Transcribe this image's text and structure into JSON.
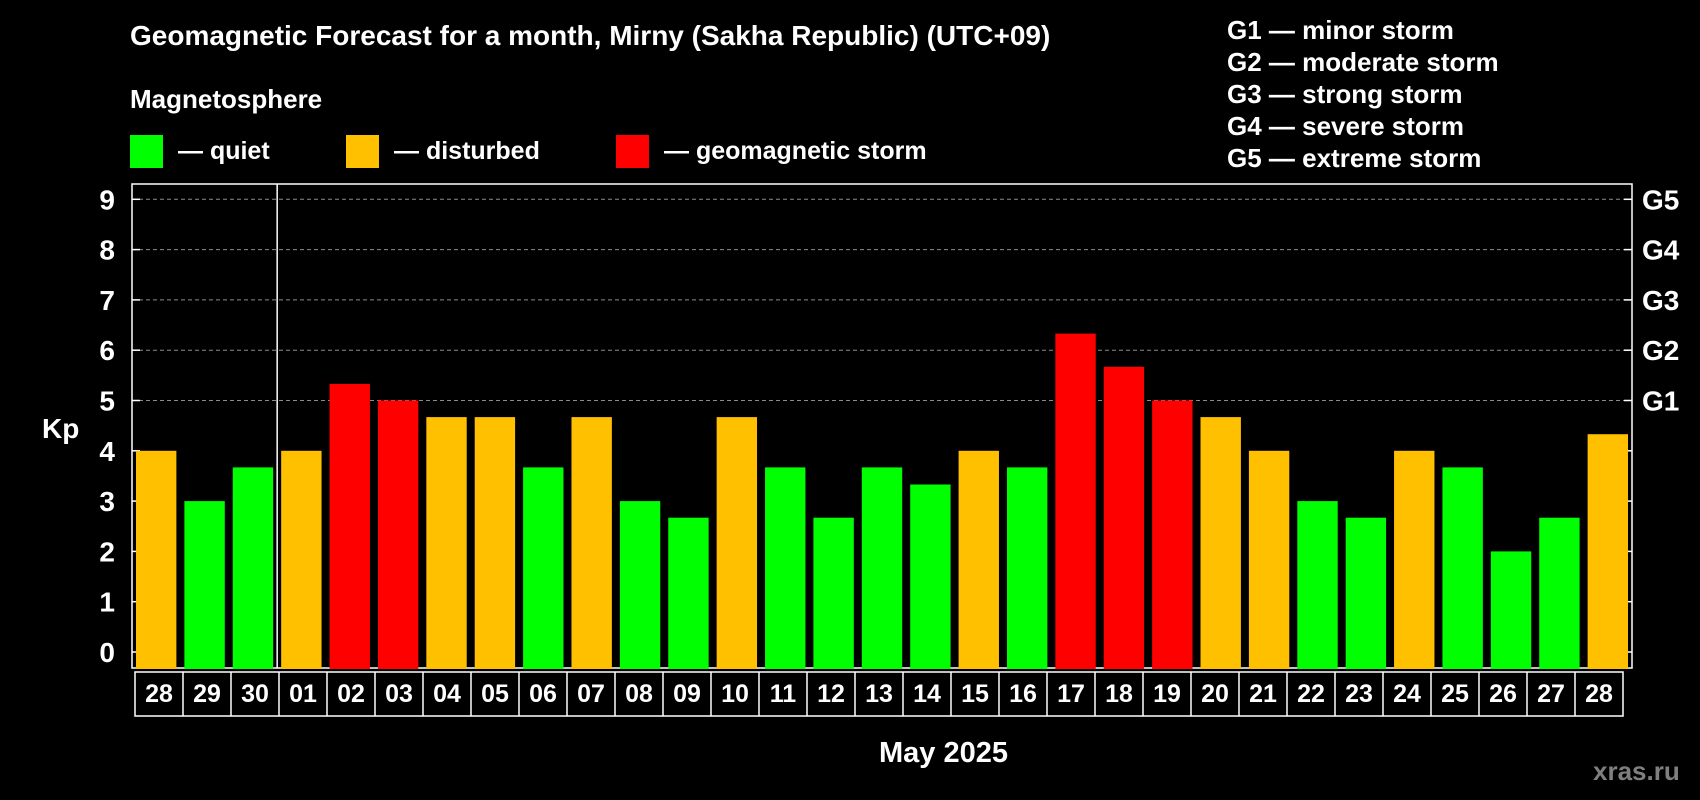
{
  "title": "Geomagnetic Forecast for a month, Mirny (Sakha Republic) (UTC+09)",
  "magnetosphere": {
    "heading": "Magnetosphere",
    "legend": [
      {
        "label": "— quiet",
        "color": "#00ff00"
      },
      {
        "label": "— disturbed",
        "color": "#ffc000"
      },
      {
        "label": "— geomagnetic storm",
        "color": "#ff0000"
      }
    ]
  },
  "g_scale": [
    "G1 — minor storm",
    "G2 — moderate storm",
    "G3 — strong storm",
    "G4 — severe storm",
    "G5 — extreme storm"
  ],
  "month_label": "May 2025",
  "watermark": "xras.ru",
  "chart_data": {
    "type": "bar",
    "ylabel": "Kp",
    "ylim": [
      0,
      9
    ],
    "yticks": [
      "0",
      "1",
      "2",
      "3",
      "4",
      "5",
      "6",
      "7",
      "8",
      "9"
    ],
    "right_ticks": [
      {
        "kp": 5,
        "label": "G1"
      },
      {
        "kp": 6,
        "label": "G2"
      },
      {
        "kp": 7,
        "label": "G3"
      },
      {
        "kp": 8,
        "label": "G4"
      },
      {
        "kp": 9,
        "label": "G5"
      }
    ],
    "grid": "dashed horizontal lines at Kp 5–9",
    "month_divider_after": "30",
    "categories": [
      "28",
      "29",
      "30",
      "01",
      "02",
      "03",
      "04",
      "05",
      "06",
      "07",
      "08",
      "09",
      "10",
      "11",
      "12",
      "13",
      "14",
      "15",
      "16",
      "17",
      "18",
      "19",
      "20",
      "21",
      "22",
      "23",
      "24",
      "25",
      "26",
      "27",
      "28"
    ],
    "values": [
      4.0,
      3.0,
      3.67,
      4.0,
      5.33,
      5.0,
      4.67,
      4.67,
      3.67,
      4.67,
      3.0,
      2.67,
      4.67,
      3.67,
      2.67,
      3.67,
      3.33,
      4.0,
      3.67,
      6.33,
      5.67,
      5.0,
      4.67,
      4.0,
      3.0,
      2.67,
      4.0,
      3.67,
      2.0,
      2.67,
      4.33
    ],
    "levels": [
      "disturbed",
      "quiet",
      "quiet",
      "disturbed",
      "storm",
      "storm",
      "disturbed",
      "disturbed",
      "quiet",
      "disturbed",
      "quiet",
      "quiet",
      "disturbed",
      "quiet",
      "quiet",
      "quiet",
      "quiet",
      "disturbed",
      "quiet",
      "storm",
      "storm",
      "storm",
      "disturbed",
      "disturbed",
      "quiet",
      "quiet",
      "disturbed",
      "quiet",
      "quiet",
      "quiet",
      "disturbed"
    ],
    "colors": {
      "quiet": "#00ff00",
      "disturbed": "#ffc000",
      "storm": "#ff0000"
    }
  }
}
